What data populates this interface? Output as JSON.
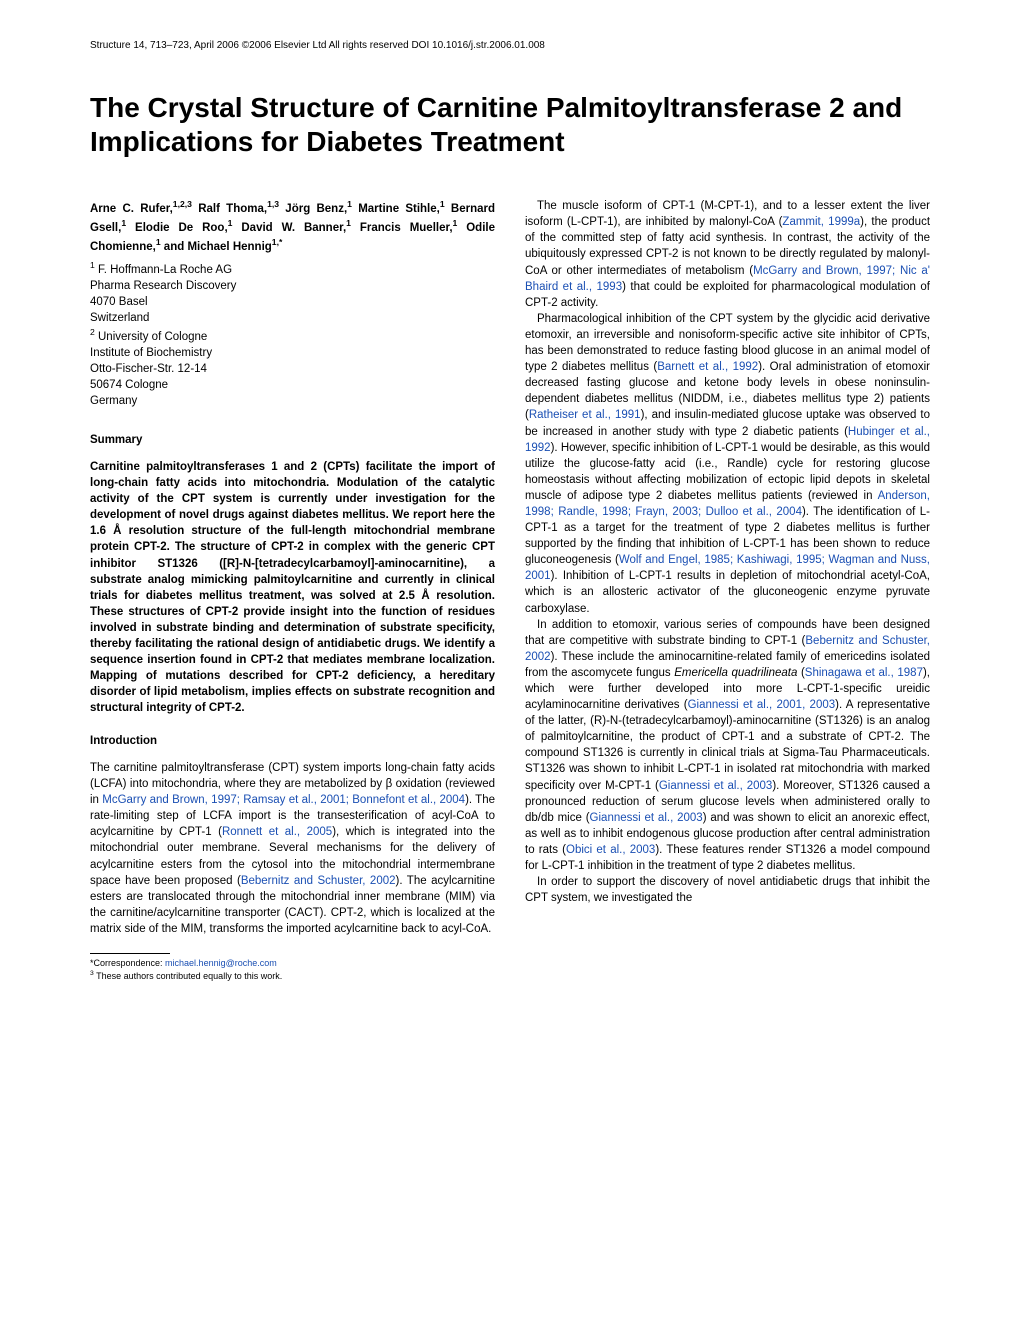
{
  "header": {
    "journal_info": "Structure 14, 713–723, April 2006 ©2006 Elsevier Ltd All rights reserved   DOI 10.1016/j.str.2006.01.008"
  },
  "title": "The Crystal Structure of Carnitine Palmitoyltransferase 2 and Implications for Diabetes Treatment",
  "authors_html": "Arne C. Rufer,<sup>1,2,3</sup> Ralf Thoma,<sup>1,3</sup> Jörg Benz,<sup>1</sup> Martine Stihle,<sup>1</sup> Bernard Gsell,<sup>1</sup> Elodie De Roo,<sup>1</sup> David W. Banner,<sup>1</sup> Francis Mueller,<sup>1</sup> Odile Chomienne,<sup>1</sup> and Michael Hennig<sup>1,*</sup>",
  "affiliations": [
    "<sup>1</sup> F. Hoffmann-La Roche AG",
    "Pharma Research Discovery",
    "4070 Basel",
    "Switzerland",
    "<sup>2</sup> University of Cologne",
    "Institute of Biochemistry",
    "Otto-Fischer-Str. 12-14",
    "50674 Cologne",
    "Germany"
  ],
  "sections": {
    "summary_heading": "Summary",
    "summary_text": "Carnitine palmitoyltransferases 1 and 2 (CPTs) facilitate the import of long-chain fatty acids into mitochondria. Modulation of the catalytic activity of the CPT system is currently under investigation for the development of novel drugs against diabetes mellitus. We report here the 1.6 Å resolution structure of the full-length mitochondrial membrane protein CPT-2. The structure of CPT-2 in complex with the generic CPT inhibitor ST1326 ([R]-N-[tetradecylcarbamoyl]-aminocarnitine), a substrate analog mimicking palmitoylcarnitine and currently in clinical trials for diabetes mellitus treatment, was solved at 2.5 Å resolution. These structures of CPT-2 provide insight into the function of residues involved in substrate binding and determination of substrate specificity, thereby facilitating the rational design of antidiabetic drugs. We identify a sequence insertion found in CPT-2 that mediates membrane localization. Mapping of mutations described for CPT-2 deficiency, a hereditary disorder of lipid metabolism, implies effects on substrate recognition and structural integrity of CPT-2.",
    "intro_heading": "Introduction",
    "intro_p1_pre": "The carnitine palmitoyltransferase (CPT) system imports long-chain fatty acids (LCFA) into mitochondria, where they are metabolized by β oxidation (reviewed in ",
    "intro_p1_cite1": "McGarry and Brown, 1997; Ramsay et al., 2001; Bonnefont et al., 2004",
    "intro_p1_mid1": "). The rate-limiting step of LCFA import is the transesterification of acyl-CoA to acylcarnitine by CPT-1 (",
    "intro_p1_cite2": "Ronnett et al., 2005",
    "intro_p1_mid2": "), which is integrated into the mitochondrial outer membrane. Several mechanisms for the delivery of acylcarnitine esters from the cytosol into the mitochondrial intermembrane space have been proposed (",
    "intro_p1_cite3": "Bebernitz and Schuster, 2002",
    "intro_p1_end": "). The acylcarnitine esters are translocated through the mitochondrial inner membrane (MIM) via the carnitine/acylcarnitine transporter (CACT). CPT-2, which is localized at the matrix side of the MIM, transforms the imported acylcarnitine back to acyl-CoA."
  },
  "col2": {
    "p1_pre": "The muscle isoform of CPT-1 (M-CPT-1), and to a lesser extent the liver isoform (L-CPT-1), are inhibited by malonyl-CoA (",
    "p1_cite1": "Zammit, 1999a",
    "p1_mid1": "), the product of the committed step of fatty acid synthesis. In contrast, the activity of the ubiquitously expressed CPT-2 is not known to be directly regulated by malonyl-CoA or other intermediates of metabolism (",
    "p1_cite2": "McGarry and Brown, 1997; Nic a' Bhaird et al., 1993",
    "p1_end": ") that could be exploited for pharmacological modulation of CPT-2 activity.",
    "p2_pre": "Pharmacological inhibition of the CPT system by the glycidic acid derivative etomoxir, an irreversible and nonisoform-specific active site inhibitor of CPTs, has been demonstrated to reduce fasting blood glucose in an animal model of type 2 diabetes mellitus (",
    "p2_cite1": "Barnett et al., 1992",
    "p2_mid1": "). Oral administration of etomoxir decreased fasting glucose and ketone body levels in obese noninsulin-dependent diabetes mellitus (NIDDM, i.e., diabetes mellitus type 2) patients (",
    "p2_cite2": "Ratheiser et al., 1991",
    "p2_mid2": "), and insulin-mediated glucose uptake was observed to be increased in another study with type 2 diabetic patients (",
    "p2_cite3": "Hubinger et al., 1992",
    "p2_mid3": "). However, specific inhibition of L-CPT-1 would be desirable, as this would utilize the glucose-fatty acid (i.e., Randle) cycle for restoring glucose homeostasis without affecting mobilization of ectopic lipid depots in skeletal muscle of adipose type 2 diabetes mellitus patients (reviewed in ",
    "p2_cite4": "Anderson, 1998; Randle, 1998; Frayn, 2003; Dulloo et al., 2004",
    "p2_mid4": "). The identification of L-CPT-1 as a target for the treatment of type 2 diabetes mellitus is further supported by the finding that inhibition of L-CPT-1 has been shown to reduce gluconeogenesis (",
    "p2_cite5": "Wolf and Engel, 1985; Kashiwagi, 1995; Wagman and Nuss, 2001",
    "p2_end": "). Inhibition of L-CPT-1 results in depletion of mitochondrial acetyl-CoA, which is an allosteric activator of the gluconeogenic enzyme pyruvate carboxylase.",
    "p3_pre": "In addition to etomoxir, various series of compounds have been designed that are competitive with substrate binding to CPT-1 (",
    "p3_cite1": "Bebernitz and Schuster, 2002",
    "p3_mid1": "). These include the aminocarnitine-related family of emericedins isolated from the ascomycete fungus ",
    "p3_italic1": "Emericella quadrilineata",
    "p3_mid1b": " (",
    "p3_cite2": "Shinagawa et al., 1987",
    "p3_mid2": "), which were further developed into more L-CPT-1-specific ureidic acylaminocarnitine derivatives (",
    "p3_cite3": "Giannessi et al., 2001, 2003",
    "p3_mid3": "). A representative of the latter, (R)-N-(tetradecylcarbamoyl)-aminocarnitine (ST1326) is an analog of palmitoylcarnitine, the product of CPT-1 and a substrate of CPT-2. The compound ST1326 is currently in clinical trials at Sigma-Tau Pharmaceuticals. ST1326 was shown to inhibit L-CPT-1 in isolated rat mitochondria with marked specificity over M-CPT-1 (",
    "p3_cite4": "Giannessi et al., 2003",
    "p3_mid4": "). Moreover, ST1326 caused a pronounced reduction of serum glucose levels when administered orally to db/db mice (",
    "p3_cite5": "Giannessi et al., 2003",
    "p3_mid5": ") and was shown to elicit an anorexic effect, as well as to inhibit endogenous glucose production after central administration to rats (",
    "p3_cite6": "Obici et al., 2003",
    "p3_end": "). These features render ST1326 a model compound for L-CPT-1 inhibition in the treatment of type 2 diabetes mellitus.",
    "p4": "In order to support the discovery of novel antidiabetic drugs that inhibit the CPT system, we investigated the"
  },
  "footnotes": {
    "correspondence_label": "*Correspondence: ",
    "correspondence_email": "michael.hennig@roche.com",
    "equal_contrib": "<sup>3</sup> These authors contributed equally to this work."
  },
  "colors": {
    "citation_color": "#1a4fb3",
    "text_color": "#000000",
    "background": "#ffffff"
  }
}
